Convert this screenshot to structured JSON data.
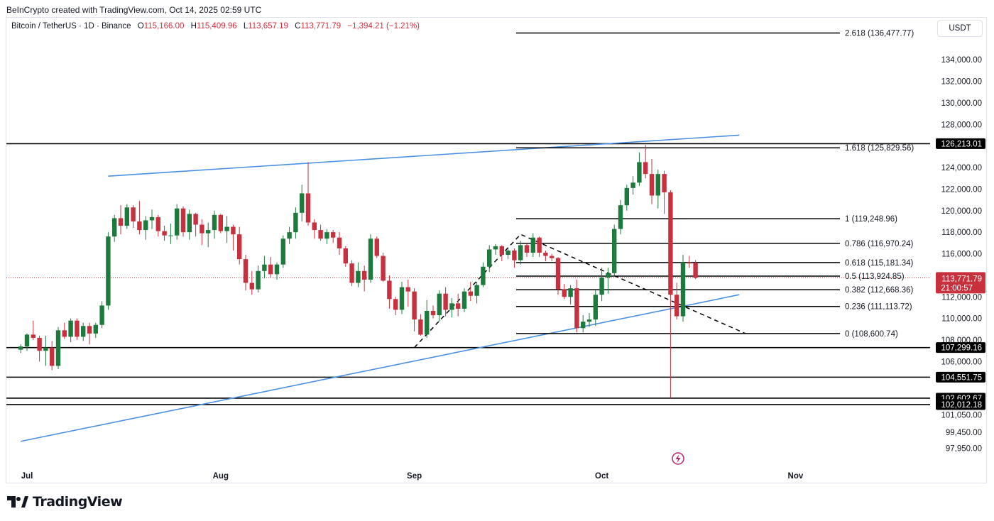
{
  "header": {
    "attribution": "BeInCrypto created with TradingView.com, Oct 14, 2025 02:59 UTC"
  },
  "legend": {
    "symbol": "Bitcoin / TetherUS · 1D · Binance",
    "open_label": "O",
    "open": "115,166.00",
    "high_label": "H",
    "high": "115,409.96",
    "low_label": "L",
    "low": "113,657.19",
    "close_label": "C",
    "close": "113,771.79",
    "change": "−1,394.21 (−1.21%)"
  },
  "currency": "USDT",
  "logo": {
    "text": "TradingView"
  },
  "colors": {
    "up": "#1e7a3c",
    "down": "#c9303e",
    "trendline": "#4a90e2",
    "level": "#000000",
    "price_tag": "#c9303e"
  },
  "chart_data": {
    "type": "candlestick",
    "y_ticks": [
      "97,950.00",
      "99,450.00",
      "101,050.00",
      "106,000.00",
      "108,000.00",
      "110,000.00",
      "112,000.00",
      "116,000.00",
      "118,000.00",
      "120,000.00",
      "122,000.00",
      "124,000.00",
      "128,000.00",
      "130,000.00",
      "132,000.00",
      "134,000.00"
    ],
    "x_ticks": [
      {
        "label": "Jul",
        "date": "2025-07-01"
      },
      {
        "label": "Aug",
        "date": "2025-08-01"
      },
      {
        "label": "Sep",
        "date": "2025-09-01"
      },
      {
        "label": "Oct",
        "date": "2025-10-01"
      },
      {
        "label": "Nov",
        "date": "2025-11-01"
      }
    ],
    "first_candle_date": "2025-06-30",
    "candles": [
      [
        107100,
        107600,
        106800,
        107400
      ],
      [
        107400,
        108600,
        107000,
        108500
      ],
      [
        108500,
        109800,
        108000,
        108200
      ],
      [
        108200,
        108400,
        106000,
        107000
      ],
      [
        107000,
        108400,
        105600,
        107300
      ],
      [
        107300,
        107900,
        105200,
        105600
      ],
      [
        105600,
        109200,
        105300,
        108900
      ],
      [
        108900,
        109600,
        108100,
        108300
      ],
      [
        108300,
        110000,
        107800,
        109800
      ],
      [
        109800,
        110000,
        108000,
        108300
      ],
      [
        108300,
        109600,
        107900,
        109300
      ],
      [
        109300,
        109600,
        107600,
        108600
      ],
      [
        108600,
        109600,
        108200,
        109400
      ],
      [
        109400,
        111600,
        109100,
        111200
      ],
      [
        111200,
        118000,
        110800,
        117600
      ],
      [
        117600,
        119600,
        117100,
        119300
      ],
      [
        119300,
        120500,
        117800,
        118600
      ],
      [
        118600,
        120600,
        118300,
        120300
      ],
      [
        120300,
        120500,
        118400,
        119000
      ],
      [
        119000,
        120900,
        117800,
        118200
      ],
      [
        118200,
        119500,
        117300,
        119100
      ],
      [
        119100,
        120100,
        118300,
        119400
      ],
      [
        119400,
        119600,
        117600,
        118100
      ],
      [
        118100,
        118600,
        117200,
        117700
      ],
      [
        117700,
        118800,
        116900,
        117700
      ],
      [
        117700,
        120600,
        117300,
        120200
      ],
      [
        120200,
        120400,
        117600,
        118000
      ],
      [
        118000,
        120100,
        117300,
        119700
      ],
      [
        119700,
        119800,
        117600,
        118700
      ],
      [
        118700,
        119200,
        116800,
        117900
      ],
      [
        117900,
        118900,
        116600,
        118200
      ],
      [
        118200,
        120000,
        117400,
        119600
      ],
      [
        119600,
        119700,
        117900,
        118100
      ],
      [
        118100,
        119500,
        117000,
        118500
      ],
      [
        118500,
        118700,
        116300,
        117800
      ],
      [
        117800,
        118500,
        115000,
        115500
      ],
      [
        115500,
        115900,
        112600,
        113300
      ],
      [
        113300,
        114400,
        112200,
        112700
      ],
      [
        112700,
        114900,
        112400,
        114400
      ],
      [
        114400,
        115800,
        113700,
        115000
      ],
      [
        115000,
        115700,
        113800,
        114100
      ],
      [
        114100,
        115200,
        113600,
        115000
      ],
      [
        115000,
        117700,
        114700,
        117400
      ],
      [
        117400,
        118500,
        116900,
        118000
      ],
      [
        118000,
        120300,
        117400,
        119800
      ],
      [
        119800,
        122400,
        119000,
        121600
      ],
      [
        121600,
        124500,
        118600,
        118900
      ],
      [
        118900,
        119200,
        117400,
        118200
      ],
      [
        118200,
        118700,
        117200,
        117400
      ],
      [
        117400,
        118300,
        116900,
        118000
      ],
      [
        118000,
        118200,
        117000,
        117500
      ],
      [
        117500,
        118000,
        115900,
        116500
      ],
      [
        116500,
        116700,
        114800,
        115100
      ],
      [
        115100,
        115400,
        113000,
        113300
      ],
      [
        113300,
        115200,
        112900,
        114400
      ],
      [
        114400,
        114900,
        112500,
        113600
      ],
      [
        113600,
        117800,
        113300,
        117400
      ],
      [
        117400,
        117600,
        115600,
        115800
      ],
      [
        115800,
        116100,
        113400,
        113500
      ],
      [
        113500,
        114000,
        110900,
        111800
      ],
      [
        111800,
        112000,
        110300,
        110800
      ],
      [
        110800,
        113400,
        110400,
        112900
      ],
      [
        112900,
        113600,
        111100,
        112500
      ],
      [
        112500,
        112800,
        108800,
        109900
      ],
      [
        109900,
        110400,
        108400,
        108500
      ],
      [
        108500,
        111700,
        108200,
        110700
      ],
      [
        110700,
        111200,
        110000,
        110300
      ],
      [
        110300,
        112600,
        109700,
        112300
      ],
      [
        112300,
        112900,
        110200,
        110800
      ],
      [
        110800,
        111900,
        110100,
        111400
      ],
      [
        111400,
        112300,
        110200,
        110900
      ],
      [
        110900,
        112800,
        110600,
        112500
      ],
      [
        112500,
        113400,
        111600,
        112100
      ],
      [
        112100,
        113400,
        111400,
        113100
      ],
      [
        113100,
        115200,
        112900,
        114800
      ],
      [
        114800,
        116800,
        114300,
        116400
      ],
      [
        116400,
        116900,
        115900,
        116700
      ],
      [
        116700,
        116800,
        115300,
        115900
      ],
      [
        115900,
        116600,
        115500,
        116300
      ],
      [
        116300,
        116500,
        114700,
        115400
      ],
      [
        115400,
        117200,
        115000,
        116800
      ],
      [
        116800,
        117000,
        115700,
        116100
      ],
      [
        116100,
        117900,
        115700,
        117500
      ],
      [
        117500,
        117600,
        115700,
        116100
      ],
      [
        116100,
        116300,
        115300,
        115800
      ],
      [
        115800,
        116000,
        115300,
        115600
      ],
      [
        115600,
        115700,
        112200,
        112700
      ],
      [
        112700,
        113200,
        111800,
        112000
      ],
      [
        112000,
        113100,
        111300,
        112800
      ],
      [
        112800,
        113600,
        108700,
        109100
      ],
      [
        109100,
        110300,
        108700,
        109700
      ],
      [
        109700,
        110500,
        109200,
        109900
      ],
      [
        109900,
        112600,
        109300,
        112200
      ],
      [
        112200,
        114700,
        111600,
        113800
      ],
      [
        113800,
        114700,
        112300,
        114200
      ],
      [
        114200,
        118700,
        113900,
        118300
      ],
      [
        118300,
        121000,
        117800,
        120500
      ],
      [
        120500,
        122400,
        120000,
        122100
      ],
      [
        122100,
        123200,
        121500,
        122600
      ],
      [
        122600,
        125400,
        122300,
        124500
      ],
      [
        124500,
        126100,
        123000,
        123400
      ],
      [
        123400,
        124800,
        120600,
        121400
      ],
      [
        121400,
        123800,
        120200,
        123400
      ],
      [
        123400,
        123700,
        119700,
        121700
      ],
      [
        121700,
        121900,
        102600,
        112200
      ],
      [
        112200,
        113300,
        109900,
        110200
      ],
      [
        110200,
        115900,
        109700,
        115200
      ],
      [
        115200,
        115800,
        114700,
        115100
      ],
      [
        115166,
        115409.96,
        113657.19,
        113771.79
      ]
    ],
    "horizontal_levels": [
      126213.01,
      107299.16,
      104551.75,
      102602.67,
      102012.18
    ],
    "level_tags": [
      "126,213.01",
      "107,299.16",
      "104,551.75",
      "102,602.67",
      "102,012.18"
    ],
    "fibonacci": [
      {
        "label": "2.618 (136,477.77)",
        "price": 136477.77
      },
      {
        "label": "1.618 (125,829.56)",
        "price": 125829.56
      },
      {
        "label": "1 (119,248.96)",
        "price": 119248.96
      },
      {
        "label": "0.786 (116,970.24)",
        "price": 116970.24
      },
      {
        "label": "0.618 (115,181.34)",
        "price": 115181.34
      },
      {
        "label": "0.5 (113,924.85)",
        "price": 113924.85
      },
      {
        "label": "0.382 (112,668.36)",
        "price": 112668.36
      },
      {
        "label": "0.236 (111,113.72)",
        "price": 111113.72
      },
      {
        "label": "0 (108,600.74)",
        "price": 108600.74
      }
    ],
    "trendlines": [
      {
        "style": "solid",
        "points": [
          [
            "2025-07-14",
            123200
          ],
          [
            "2025-10-23",
            127000
          ]
        ]
      },
      {
        "style": "solid",
        "points": [
          [
            "2025-06-30",
            98600
          ],
          [
            "2025-10-23",
            112200
          ]
        ]
      }
    ],
    "zigzag": [
      [
        "2025-09-01",
        107300
      ],
      [
        "2025-09-18",
        117800
      ],
      [
        "2025-10-24",
        108600
      ]
    ],
    "current_price": {
      "value": 113771.79,
      "label": "113,771.79",
      "countdown": "21:00:57"
    }
  }
}
